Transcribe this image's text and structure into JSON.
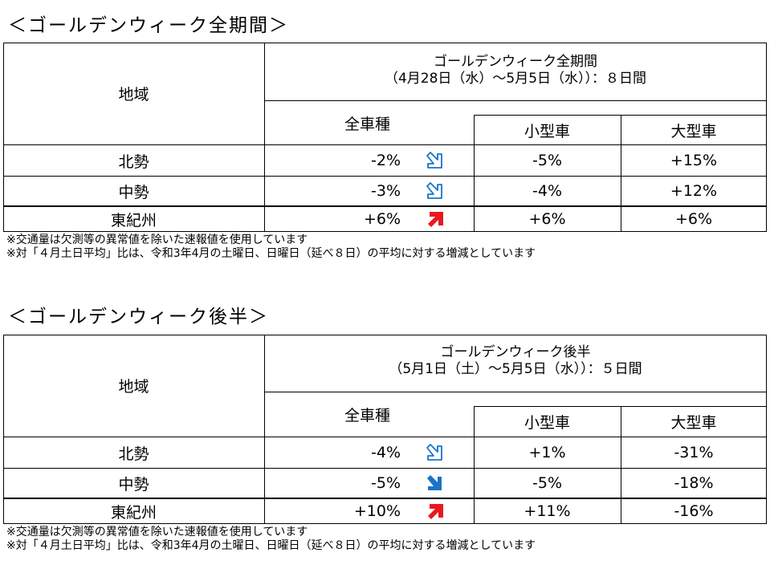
{
  "sections": [
    {
      "title": "＜ゴールデンウィーク全期間＞",
      "header": {
        "region_label": "地域",
        "period_line1": "ゴールデンウィーク全期間",
        "period_line2": "（4月28日（水）～5月5日（水））：８日間",
        "col_all": "全車種",
        "col_small": "小型車",
        "col_large": "大型車"
      },
      "rows": [
        {
          "region": "北勢",
          "all": "-2%",
          "trend": "down-outline",
          "small": "-5%",
          "large": "+15%"
        },
        {
          "region": "中勢",
          "all": "-3%",
          "trend": "down-outline",
          "small": "-4%",
          "large": "+12%"
        },
        {
          "region": "東紀州",
          "all": "+6%",
          "trend": "up-red",
          "small": "+6%",
          "large": "+6%"
        }
      ],
      "notes": [
        "※交通量は欠測等の異常値を除いた速報値を使用しています",
        "※対「４月土日平均」比は、令和3年4月の土曜日、日曜日（延べ８日）の平均に対する増減としています"
      ]
    },
    {
      "title": "＜ゴールデンウィーク後半＞",
      "header": {
        "region_label": "地域",
        "period_line1": "ゴールデンウィーク後半",
        "period_line2": "（5月1日（土）～5月5日（水））：５日間",
        "col_all": "全車種",
        "col_small": "小型車",
        "col_large": "大型車"
      },
      "rows": [
        {
          "region": "北勢",
          "all": "-4%",
          "trend": "down-outline",
          "small": "+1%",
          "large": "-31%"
        },
        {
          "region": "中勢",
          "all": "-5%",
          "trend": "down-solid",
          "small": "-5%",
          "large": "-18%"
        },
        {
          "region": "東紀州",
          "all": "+10%",
          "trend": "up-red",
          "small": "+11%",
          "large": "-16%"
        }
      ],
      "notes": [
        "※交通量は欠測等の異常値を除いた速報値を使用しています",
        "※対「４月土日平均」比は、令和3年4月の土曜日、日曜日（延べ８日）の平均に対する増減としています"
      ]
    }
  ],
  "colors": {
    "border": "#000000",
    "arrow_blue": "#1a73c6",
    "arrow_red": "#e8191e"
  },
  "icons": {
    "down-outline": "outlined-down-right-arrow-icon",
    "down-solid": "solid-down-right-arrow-icon",
    "up-red": "solid-up-right-arrow-icon"
  }
}
